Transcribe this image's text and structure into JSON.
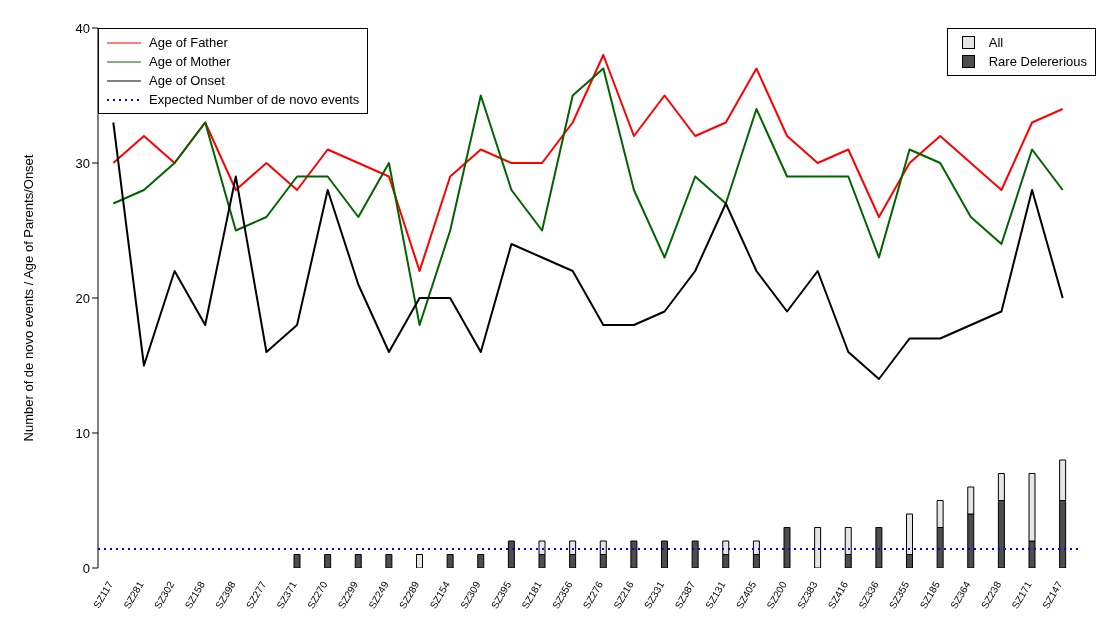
{
  "chart_data": {
    "type": "line",
    "ylabel": "Number of de novo events / Age of Parents/Onset",
    "categories": [
      "SZ117",
      "SZ281",
      "SZ302",
      "SZ158",
      "SZ398",
      "SZ277",
      "SZ371",
      "SZ270",
      "SZ299",
      "SZ249",
      "SZ289",
      "SZ154",
      "SZ309",
      "SZ395",
      "SZ181",
      "SZ356",
      "SZ276",
      "SZ216",
      "SZ331",
      "SZ387",
      "SZ131",
      "SZ405",
      "SZ200",
      "SZ383",
      "SZ416",
      "SZ336",
      "SZ355",
      "SZ185",
      "SZ364",
      "SZ238",
      "SZ171",
      "SZ147"
    ],
    "stacked": true,
    "series": [
      {
        "name": "Rare Delererious",
        "type": "bar",
        "color": "#4d4d4d",
        "values": [
          0,
          0,
          0,
          0,
          0,
          0,
          1,
          1,
          1,
          1,
          0,
          1,
          1,
          2,
          1,
          1,
          1,
          2,
          2,
          2,
          1,
          1,
          3,
          0,
          1,
          3,
          1,
          3,
          4,
          5,
          2,
          5
        ]
      },
      {
        "name": "All",
        "type": "bar",
        "color": "#e5e5e5",
        "values": [
          0,
          0,
          0,
          0,
          0,
          0,
          0,
          0,
          0,
          0,
          1,
          0,
          0,
          0,
          1,
          1,
          1,
          0,
          0,
          0,
          1,
          1,
          0,
          3,
          2,
          0,
          3,
          2,
          2,
          2,
          5,
          3
        ]
      },
      {
        "name": "Age of Father",
        "color": "#ff0000",
        "values": [
          30,
          32,
          30,
          33,
          28,
          30,
          28,
          31,
          30,
          29,
          22,
          29,
          31,
          30,
          30,
          33,
          38,
          32,
          35,
          32,
          33,
          37,
          32,
          30,
          31,
          26,
          30,
          32,
          30,
          28,
          33,
          34
        ]
      },
      {
        "name": "Age of Mother",
        "color": "#006400",
        "values": [
          27,
          28,
          30,
          33,
          25,
          26,
          29,
          29,
          26,
          30,
          18,
          25,
          35,
          28,
          25,
          35,
          37,
          28,
          23,
          29,
          27,
          34,
          29,
          29,
          29,
          23,
          31,
          30,
          26,
          24,
          31,
          28
        ]
      },
      {
        "name": "Age of Onset",
        "color": "#000000",
        "values": [
          33,
          15,
          22,
          18,
          29,
          16,
          18,
          28,
          21,
          16,
          20,
          20,
          16,
          24,
          23,
          22,
          18,
          18,
          19,
          22,
          27,
          22,
          19,
          22,
          16,
          14,
          17,
          17,
          18,
          19,
          28,
          20
        ]
      }
    ],
    "ref_lines": [
      {
        "axis": "y",
        "value": 1.4,
        "label": "Expected Number of de novo events",
        "color": "#0000ff",
        "line_style": "dotted"
      }
    ],
    "ylim": [
      0,
      40
    ],
    "yticks": [
      0,
      10,
      20,
      30,
      40
    ],
    "grid": false,
    "legend": "top",
    "marker": "none"
  }
}
